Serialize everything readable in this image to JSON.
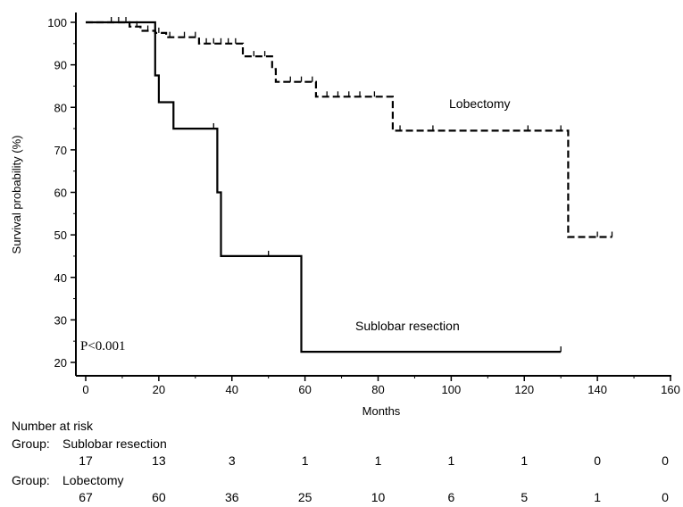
{
  "chart_data": {
    "type": "line",
    "subtype": "kaplan-meier",
    "xlabel": "Months",
    "ylabel": "Survival probability (%)",
    "xlim": [
      0,
      160
    ],
    "ylim": [
      20,
      100
    ],
    "x_ticks": [
      0,
      20,
      40,
      60,
      80,
      100,
      120,
      140,
      160
    ],
    "y_ticks": [
      20,
      30,
      40,
      50,
      60,
      70,
      80,
      90,
      100
    ],
    "annotation": "P<0.001",
    "series": [
      {
        "name": "Sublobar resection",
        "line_style": "solid",
        "steps": [
          [
            0,
            100
          ],
          [
            19,
            100
          ],
          [
            19,
            87.5
          ],
          [
            20,
            87.5
          ],
          [
            20,
            81.2
          ],
          [
            24,
            81.2
          ],
          [
            24,
            75
          ],
          [
            36,
            75
          ],
          [
            36,
            60
          ],
          [
            37,
            60
          ],
          [
            37,
            45
          ],
          [
            59,
            45
          ],
          [
            59,
            22.5
          ],
          [
            130,
            22.5
          ]
        ],
        "censor_x": [
          24,
          35,
          50,
          130
        ],
        "censor_y": [
          75,
          75,
          45,
          22.5
        ]
      },
      {
        "name": "Lobectomy",
        "line_style": "dashed",
        "steps": [
          [
            0,
            100
          ],
          [
            12,
            100
          ],
          [
            12,
            99
          ],
          [
            15,
            99
          ],
          [
            15,
            98
          ],
          [
            19,
            98
          ],
          [
            19,
            97.5
          ],
          [
            22,
            97.5
          ],
          [
            22,
            96.5
          ],
          [
            31,
            96.5
          ],
          [
            31,
            95
          ],
          [
            43,
            95
          ],
          [
            43,
            92
          ],
          [
            51,
            92
          ],
          [
            51,
            89
          ],
          [
            52,
            89
          ],
          [
            52,
            86
          ],
          [
            63,
            86
          ],
          [
            63,
            82.5
          ],
          [
            84,
            82.5
          ],
          [
            84,
            74.5
          ],
          [
            132,
            74.5
          ],
          [
            132,
            49.5
          ],
          [
            144,
            49.5
          ]
        ],
        "censor_x": [
          7,
          9,
          11,
          14,
          17,
          20,
          23,
          27,
          30,
          33,
          35,
          37,
          39,
          41,
          46,
          49,
          56,
          59,
          62,
          66,
          69,
          72,
          75,
          79,
          86,
          95,
          121,
          130,
          140,
          144
        ],
        "censor_y": [
          100,
          100,
          100,
          99,
          98,
          97.5,
          96.5,
          96.5,
          96.5,
          95,
          95,
          95,
          95,
          95,
          92,
          92,
          86,
          86,
          86,
          82.5,
          82.5,
          82.5,
          82.5,
          82.5,
          74.5,
          74.5,
          74.5,
          74.5,
          49.5,
          49.5
        ]
      }
    ],
    "number_at_risk": {
      "title": "Number at risk",
      "x": [
        0,
        20,
        40,
        60,
        80,
        100,
        120,
        140,
        160
      ],
      "groups": [
        {
          "label": "Group:",
          "name": "Sublobar resection",
          "values": [
            "17",
            "13",
            "3",
            "1",
            "1",
            "1",
            "1",
            "0",
            "0"
          ]
        },
        {
          "label": "Group:",
          "name": "Lobectomy",
          "values": [
            "67",
            "60",
            "36",
            "25",
            "10",
            "6",
            "5",
            "1",
            "0"
          ]
        }
      ]
    }
  }
}
